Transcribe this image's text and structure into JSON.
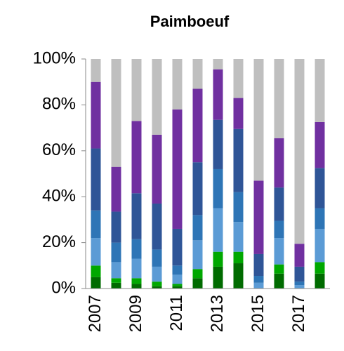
{
  "chart_data": {
    "type": "stacked_bar",
    "title": "Paimboeuf",
    "categories": [
      "2007",
      null,
      "2009",
      null,
      "2011",
      null,
      "2013",
      null,
      "2015",
      null,
      "2017",
      null
    ],
    "series": [
      {
        "color": "#006b00",
        "values": [
          5,
          2.5,
          2,
          1,
          1,
          4.5,
          9.5,
          11,
          0,
          6.5,
          0,
          6.5
        ]
      },
      {
        "color": "#00a800",
        "values": [
          5,
          2,
          2.5,
          2,
          1,
          4,
          6.5,
          5,
          0,
          4,
          0,
          5
        ]
      },
      {
        "color": "#5b9bd5",
        "values": [
          12,
          7,
          8.5,
          6.5,
          4,
          12.5,
          19,
          13,
          2.5,
          11.5,
          1.5,
          14.5
        ]
      },
      {
        "color": "#2e75b6",
        "values": [
          12,
          8.5,
          8.5,
          7.5,
          4,
          11,
          17,
          13,
          3,
          7.5,
          1.5,
          9
        ]
      },
      {
        "color": "#2f5597",
        "values": [
          27,
          13.5,
          20,
          20,
          16,
          23,
          21.5,
          27.5,
          9.5,
          14.5,
          6.5,
          17.5
        ]
      },
      {
        "color": "#7030a0",
        "values": [
          29,
          19.5,
          31.5,
          30,
          52,
          32,
          22,
          13.5,
          32,
          21.5,
          10,
          20
        ]
      },
      {
        "color": "#bfbfbf",
        "values": [
          10,
          47,
          27,
          33,
          22,
          13,
          4.5,
          17,
          53,
          34.5,
          80.5,
          27.5
        ]
      }
    ],
    "ylim": [
      0,
      100
    ],
    "yticks": [
      {
        "value": 0,
        "label": "0%"
      },
      {
        "value": 20,
        "label": "20%"
      },
      {
        "value": 40,
        "label": "40%"
      },
      {
        "value": 60,
        "label": "60%"
      },
      {
        "value": 80,
        "label": "80%"
      },
      {
        "value": 100,
        "label": "100%"
      }
    ]
  }
}
